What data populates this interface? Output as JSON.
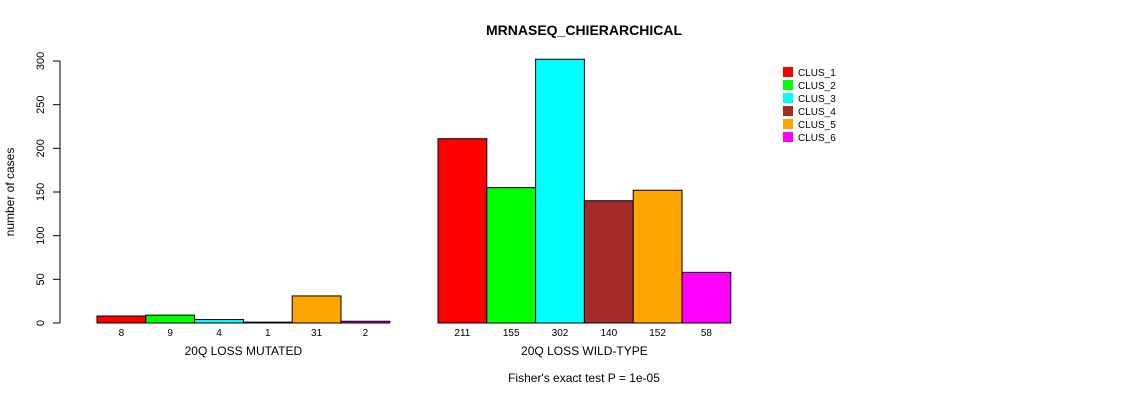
{
  "chart_data": {
    "type": "bar",
    "title": "MRNASEQ_CHIERARCHICAL",
    "ylabel": "number of cases",
    "ylim": [
      0,
      300
    ],
    "yticks": [
      0,
      50,
      100,
      150,
      200,
      250,
      300
    ],
    "footnote": "Fisher's exact test P = 1e-05",
    "legend_position": "top-right",
    "groups": [
      {
        "name": "20Q LOSS MUTATED",
        "values": [
          8,
          9,
          4,
          1,
          31,
          2
        ]
      },
      {
        "name": "20Q LOSS WILD-TYPE",
        "values": [
          211,
          155,
          302,
          140,
          152,
          58
        ]
      }
    ],
    "series": [
      {
        "name": "CLUS_1",
        "color": "#ff0000"
      },
      {
        "name": "CLUS_2",
        "color": "#00ff00"
      },
      {
        "name": "CLUS_3",
        "color": "#00ffff"
      },
      {
        "name": "CLUS_4",
        "color": "#a52a2a"
      },
      {
        "name": "CLUS_5",
        "color": "#ffa500"
      },
      {
        "name": "CLUS_6",
        "color": "#ff00ff"
      }
    ]
  }
}
